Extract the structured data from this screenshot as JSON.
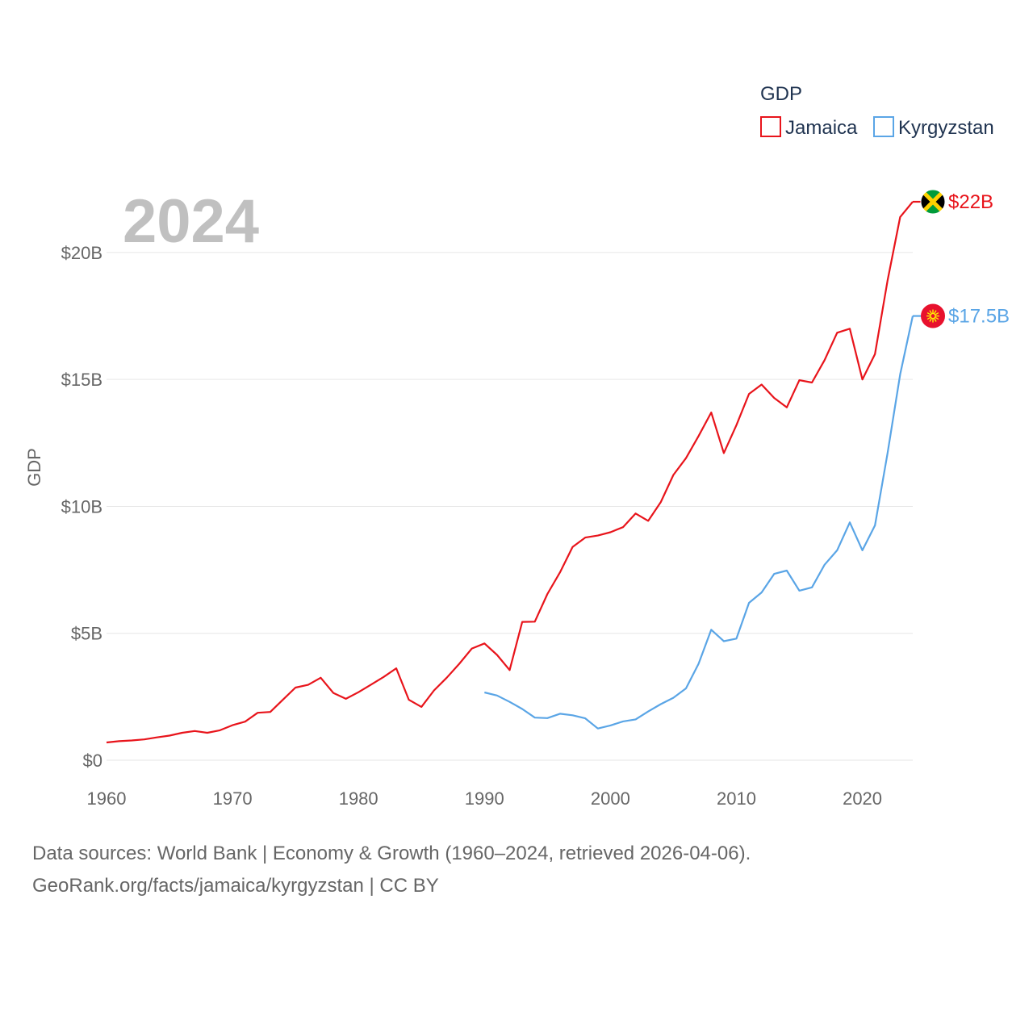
{
  "chart_data": {
    "type": "line",
    "title": "GDP",
    "year_label": "2024",
    "ylabel": "GDP",
    "xlabel": "",
    "xlim": [
      1960,
      2024
    ],
    "ylim": [
      0,
      22
    ],
    "x_ticks": [
      1960,
      1970,
      1980,
      1990,
      2000,
      2010,
      2020
    ],
    "x_tick_labels": [
      "1960",
      "1970",
      "1980",
      "1990",
      "2000",
      "2010",
      "2020"
    ],
    "y_ticks": [
      0,
      5,
      10,
      15,
      20
    ],
    "y_tick_labels": [
      "$0",
      "$5B",
      "$10B",
      "$15B",
      "$20B"
    ],
    "legend_position": "top-right",
    "series": [
      {
        "name": "Jamaica",
        "color": "#e8141b",
        "end_label": "$22B",
        "flag_icon": "jamaica-flag-icon",
        "x": [
          1960,
          1961,
          1962,
          1963,
          1964,
          1965,
          1966,
          1967,
          1968,
          1969,
          1970,
          1971,
          1972,
          1973,
          1974,
          1975,
          1976,
          1977,
          1978,
          1979,
          1980,
          1981,
          1982,
          1983,
          1984,
          1985,
          1986,
          1987,
          1988,
          1989,
          1990,
          1991,
          1992,
          1993,
          1994,
          1995,
          1996,
          1997,
          1998,
          1999,
          2000,
          2001,
          2002,
          2003,
          2004,
          2005,
          2006,
          2007,
          2008,
          2009,
          2010,
          2011,
          2012,
          2013,
          2014,
          2015,
          2016,
          2017,
          2018,
          2019,
          2020,
          2021,
          2022,
          2023,
          2024
        ],
        "values": [
          0.7,
          0.75,
          0.78,
          0.82,
          0.9,
          0.97,
          1.08,
          1.15,
          1.08,
          1.18,
          1.38,
          1.52,
          1.87,
          1.9,
          2.38,
          2.86,
          2.97,
          3.25,
          2.65,
          2.42,
          2.68,
          2.98,
          3.28,
          3.62,
          2.38,
          2.1,
          2.75,
          3.25,
          3.8,
          4.4,
          4.6,
          4.15,
          3.55,
          5.45,
          5.46,
          6.55,
          7.4,
          8.4,
          8.77,
          8.85,
          8.98,
          9.18,
          9.72,
          9.43,
          10.17,
          11.24,
          11.9,
          12.77,
          13.7,
          12.1,
          13.2,
          14.43,
          14.8,
          14.27,
          13.9,
          14.97,
          14.88,
          15.76,
          16.84,
          17.0,
          15.0,
          16.0,
          18.9,
          21.4,
          22.0
        ]
      },
      {
        "name": "Kyrgyzstan",
        "color": "#5aa5e6",
        "end_label": "$17.5B",
        "flag_icon": "kyrgyzstan-flag-icon",
        "x": [
          1990,
          1991,
          1992,
          1993,
          1994,
          1995,
          1996,
          1997,
          1998,
          1999,
          2000,
          2001,
          2002,
          2003,
          2004,
          2005,
          2006,
          2007,
          2008,
          2009,
          2010,
          2011,
          2012,
          2013,
          2014,
          2015,
          2016,
          2017,
          2018,
          2019,
          2020,
          2021,
          2022,
          2023,
          2024
        ],
        "values": [
          2.67,
          2.55,
          2.3,
          2.02,
          1.68,
          1.66,
          1.83,
          1.77,
          1.65,
          1.25,
          1.37,
          1.53,
          1.61,
          1.92,
          2.21,
          2.46,
          2.83,
          3.8,
          5.14,
          4.69,
          4.79,
          6.2,
          6.61,
          7.34,
          7.47,
          6.68,
          6.81,
          7.7,
          8.27,
          9.37,
          8.27,
          9.25,
          12.1,
          15.2,
          17.5
        ]
      }
    ]
  },
  "footer": {
    "source_line1": "Data sources: World Bank | Economy & Growth (1960–2024, retrieved 2026-04-06).",
    "source_line2": "GeoRank.org/facts/jamaica/kyrgyzstan | CC BY"
  }
}
